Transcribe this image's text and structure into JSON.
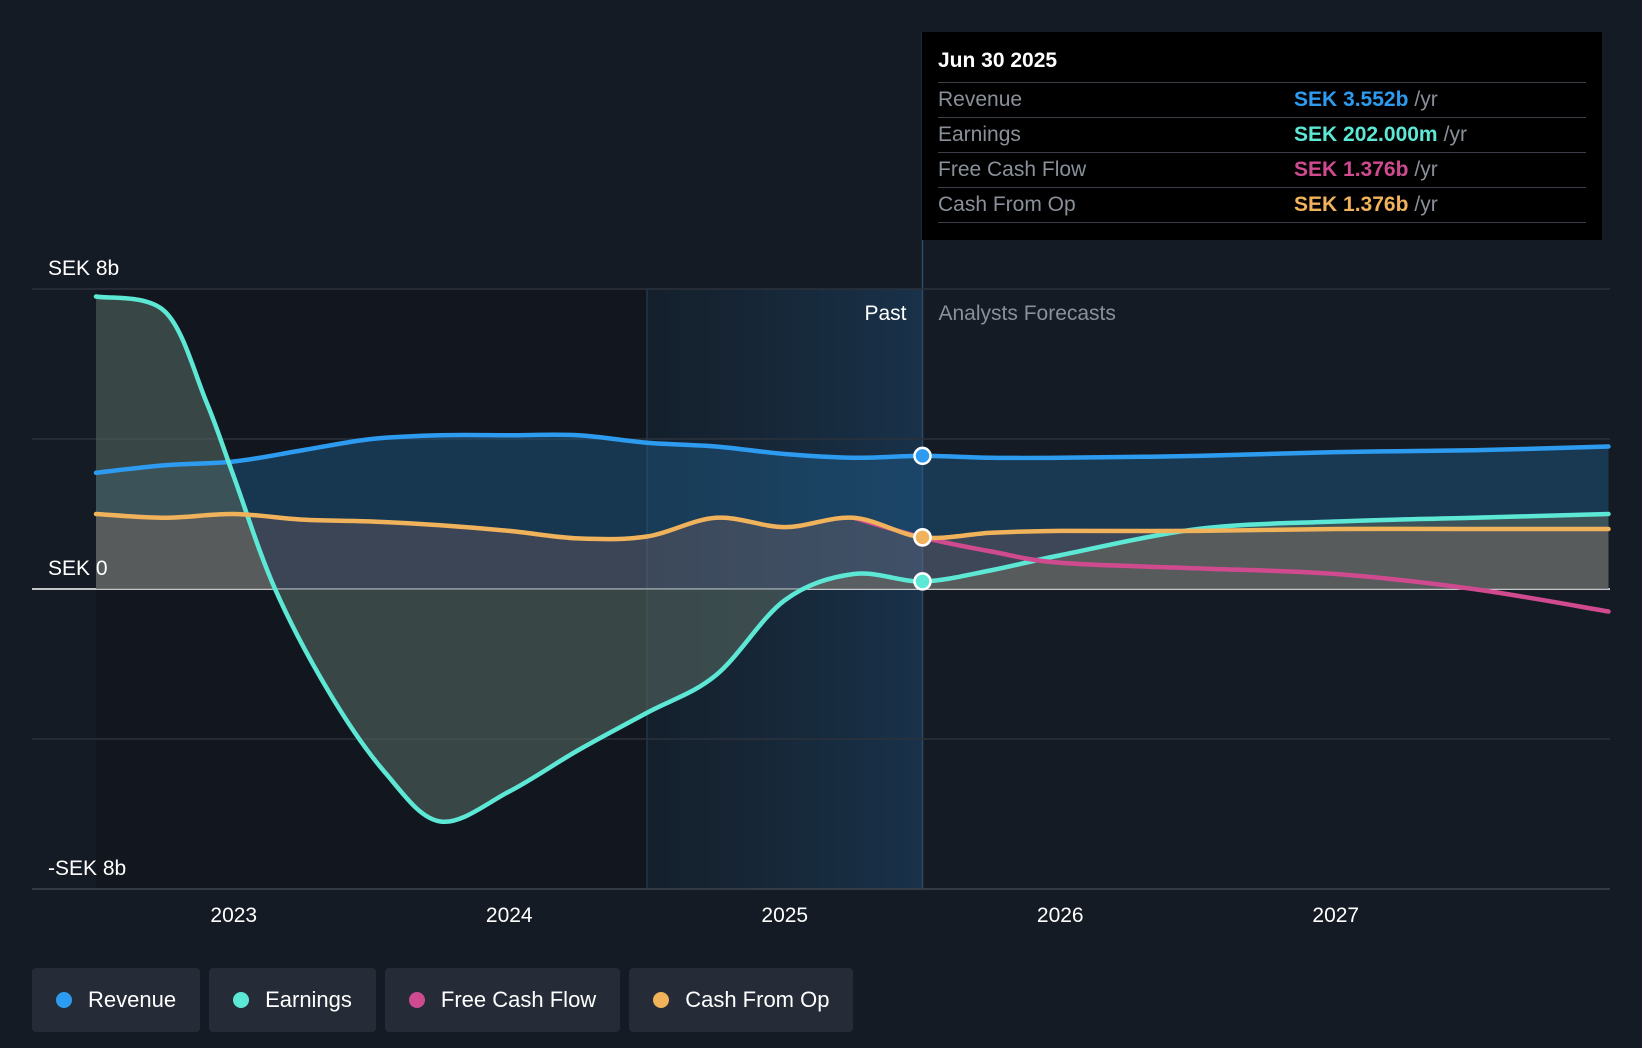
{
  "tooltip": {
    "date": "Jun 30 2025",
    "unit": "/yr",
    "rows": [
      {
        "label": "Revenue",
        "value": "SEK 3.552b"
      },
      {
        "label": "Earnings",
        "value": "SEK 202.000m"
      },
      {
        "label": "Free Cash Flow",
        "value": "SEK 1.376b"
      },
      {
        "label": "Cash From Op",
        "value": "SEK 1.376b"
      }
    ]
  },
  "regions": {
    "past": "Past",
    "forecast": "Analysts Forecasts"
  },
  "legend": [
    {
      "label": "Revenue",
      "color": "#2d9cf0"
    },
    {
      "label": "Earnings",
      "color": "#5de8d6"
    },
    {
      "label": "Free Cash Flow",
      "color": "#d04a90"
    },
    {
      "label": "Cash From Op",
      "color": "#f0b25a"
    }
  ],
  "chart_data": {
    "type": "line",
    "y_tick_labels": [
      "SEK 8b",
      "SEK 0",
      "-SEK 8b"
    ],
    "y_ticks": [
      8,
      0,
      -8
    ],
    "x_tick_labels": [
      "2023",
      "2024",
      "2025",
      "2026",
      "2027"
    ],
    "x_ticks": [
      2023,
      2024,
      2025,
      2026,
      2027
    ],
    "ylim": [
      -8,
      8
    ],
    "xlim": [
      2022.25,
      2027.99
    ],
    "past_forecast_divider": 2025.5,
    "shaded_range_start": 2024.5,
    "series": [
      {
        "name": "Revenue",
        "color": "#2d9cf0",
        "x": [
          2022.5,
          2022.75,
          2023.0,
          2023.25,
          2023.5,
          2023.75,
          2024.0,
          2024.25,
          2024.5,
          2024.75,
          2025.0,
          2025.25,
          2025.5,
          2025.75,
          2026.0,
          2026.5,
          2027.0,
          2027.5,
          2027.99
        ],
        "y": [
          3.1,
          3.3,
          3.4,
          3.7,
          4.0,
          4.1,
          4.1,
          4.1,
          3.9,
          3.8,
          3.6,
          3.5,
          3.55,
          3.5,
          3.5,
          3.55,
          3.65,
          3.7,
          3.8
        ]
      },
      {
        "name": "Earnings",
        "color": "#5de8d6",
        "x": [
          2022.5,
          2022.75,
          2022.9,
          2023.0,
          2023.15,
          2023.35,
          2023.55,
          2023.75,
          2024.0,
          2024.25,
          2024.5,
          2024.75,
          2025.0,
          2025.25,
          2025.5,
          2025.75,
          2026.0,
          2026.5,
          2027.0,
          2027.5,
          2027.99
        ],
        "y": [
          7.8,
          7.4,
          5.0,
          3.0,
          0.0,
          -2.8,
          -4.9,
          -6.2,
          -5.4,
          -4.3,
          -3.3,
          -2.3,
          -0.3,
          0.4,
          0.202,
          0.5,
          0.9,
          1.6,
          1.8,
          1.9,
          2.0
        ]
      },
      {
        "name": "Free Cash Flow",
        "color": "#d04a90",
        "x": [
          2025.25,
          2025.5,
          2025.75,
          2026.0,
          2026.5,
          2027.0,
          2027.5,
          2027.99
        ],
        "y": [
          1.9,
          1.376,
          1.0,
          0.7,
          0.55,
          0.4,
          0.0,
          -0.6
        ]
      },
      {
        "name": "Cash From Op",
        "color": "#f0b25a",
        "x": [
          2022.5,
          2022.75,
          2023.0,
          2023.25,
          2023.5,
          2023.75,
          2024.0,
          2024.25,
          2024.5,
          2024.75,
          2025.0,
          2025.25,
          2025.5,
          2025.75,
          2026.0,
          2026.5,
          2027.0,
          2027.5,
          2027.99
        ],
        "y": [
          2.0,
          1.9,
          2.0,
          1.85,
          1.8,
          1.7,
          1.55,
          1.35,
          1.4,
          1.9,
          1.65,
          1.9,
          1.376,
          1.5,
          1.55,
          1.55,
          1.6,
          1.6,
          1.6
        ]
      }
    ],
    "highlight_x": 2025.5
  }
}
